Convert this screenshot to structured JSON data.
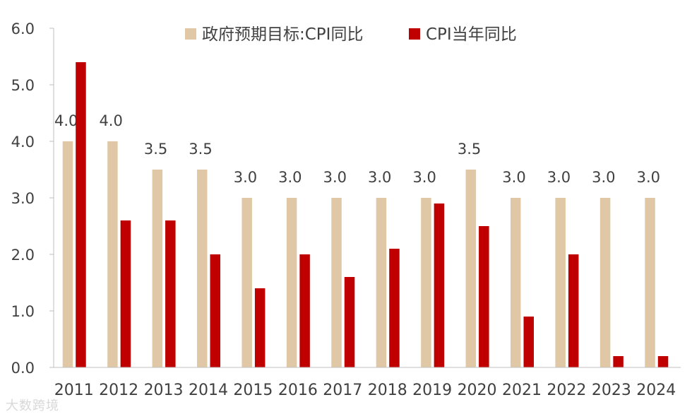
{
  "chart_data": {
    "type": "bar",
    "categories": [
      "2011",
      "2012",
      "2013",
      "2014",
      "2015",
      "2016",
      "2017",
      "2018",
      "2019",
      "2020",
      "2021",
      "2022",
      "2023",
      "2024"
    ],
    "series": [
      {
        "name": "政府预期目标:CPI同比",
        "color": "#E0C8A6",
        "values": [
          4.0,
          4.0,
          3.5,
          3.5,
          3.0,
          3.0,
          3.0,
          3.0,
          3.0,
          3.5,
          3.0,
          3.0,
          3.0,
          3.0
        ],
        "labels": [
          "4.0",
          "4.0",
          "3.5",
          "3.5",
          "3.0",
          "3.0",
          "3.0",
          "3.0",
          "3.0",
          "3.5",
          "3.0",
          "3.0",
          "3.0",
          "3.0"
        ]
      },
      {
        "name": "CPI当年同比",
        "color": "#C00000",
        "values": [
          5.4,
          2.6,
          2.6,
          2.0,
          1.4,
          2.0,
          1.6,
          2.1,
          2.9,
          2.5,
          0.9,
          2.0,
          0.2,
          0.2
        ]
      }
    ],
    "yticks": [
      "0.0",
      "1.0",
      "2.0",
      "3.0",
      "4.0",
      "5.0",
      "6.0"
    ],
    "ylim": [
      0,
      6
    ],
    "grid": false,
    "legend_position": "top"
  },
  "watermark": "大数跨境"
}
